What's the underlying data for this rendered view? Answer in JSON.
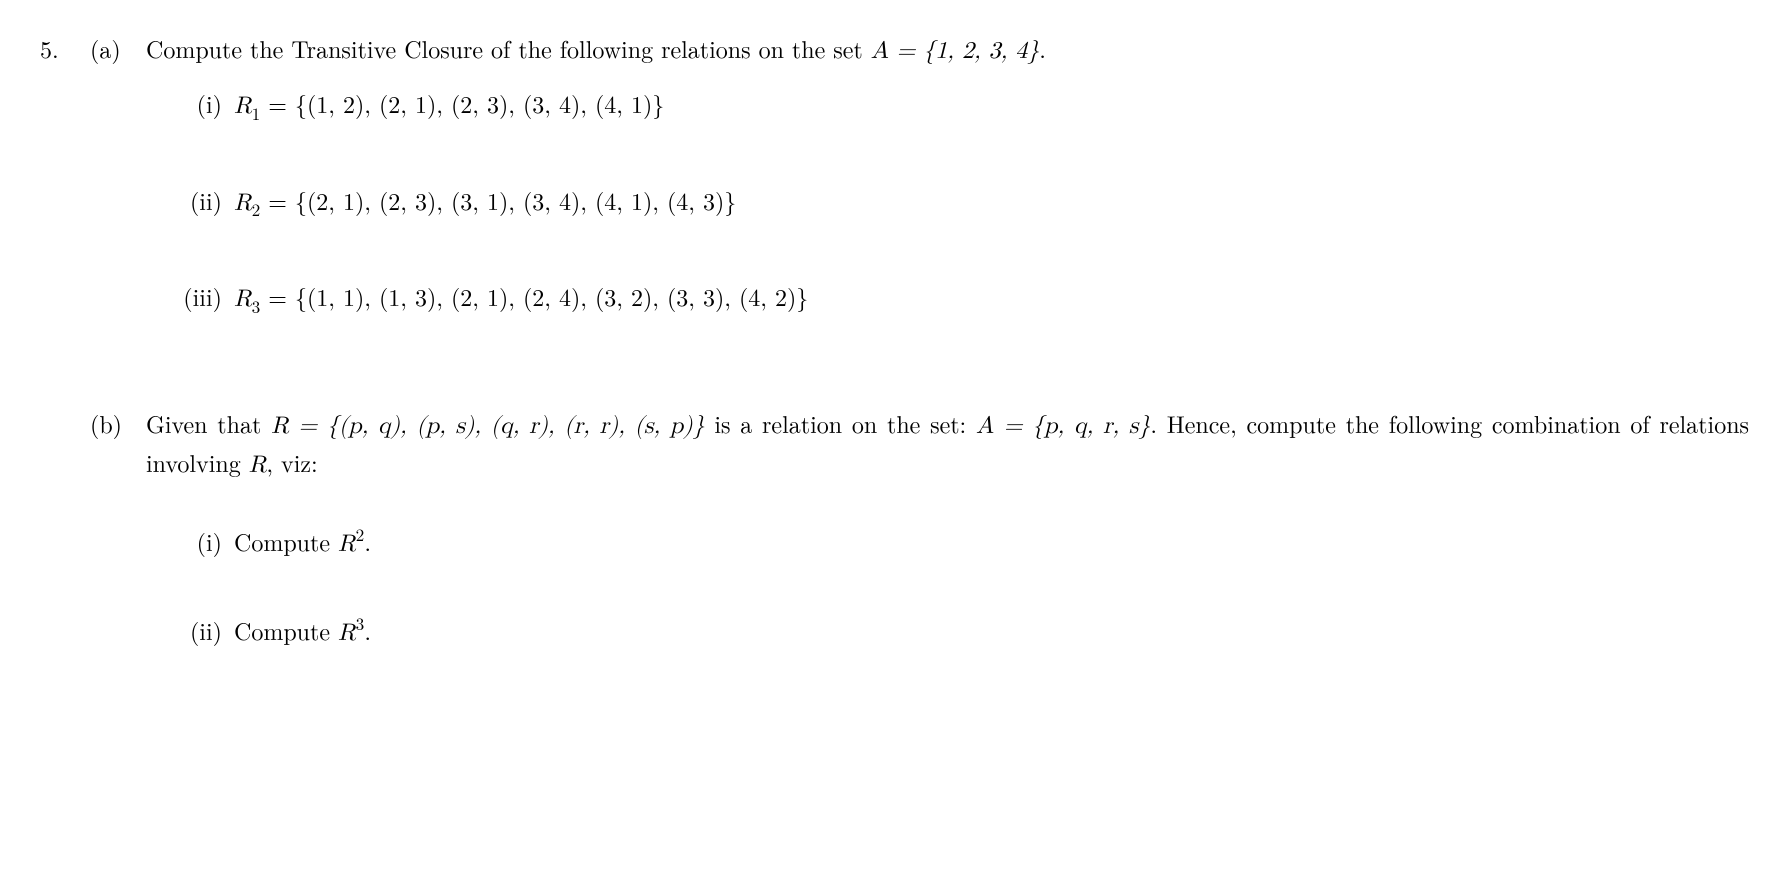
{
  "problem_number": "5.",
  "part_a": {
    "label": "(a)",
    "intro_prefix": "Compute the Transitive Closure of the following relations on the set ",
    "set_A": "A = {1, 2, 3, 4}",
    "intro_suffix": ".",
    "items": [
      {
        "label": "(i)",
        "rel_name": "R",
        "rel_sub": "1",
        "rel_set": " = {(1, 2), (2, 1), (2, 3), (3, 4), (4, 1)}"
      },
      {
        "label": "(ii)",
        "rel_name": "R",
        "rel_sub": "2",
        "rel_set": " = {(2, 1), (2, 3), (3, 1), (3, 4), (4, 1), (4, 3)}"
      },
      {
        "label": "(iii)",
        "rel_name": "R",
        "rel_sub": "3",
        "rel_set": " = {(1, 1), (1, 3), (2, 1), (2, 4), (3, 2), (3, 3), (4, 2)}"
      }
    ]
  },
  "part_b": {
    "label": "(b)",
    "intro_1": "Given that ",
    "R_def": "R = {(p, q), (p, s), (q, r), (r, r), (s, p)}",
    "intro_2": " is a relation on the set: ",
    "A_def": "A = {p, q, r, s}",
    "intro_3": ". Hence, compute the following combination of relations involving ",
    "R_letter": "R",
    "intro_4": ", viz:",
    "items": [
      {
        "label": "(i)",
        "text_prefix": "Compute ",
        "var": "R",
        "power": "2",
        "text_suffix": "."
      },
      {
        "label": "(ii)",
        "text_prefix": "Compute ",
        "var": "R",
        "power": "3",
        "text_suffix": "."
      }
    ]
  }
}
